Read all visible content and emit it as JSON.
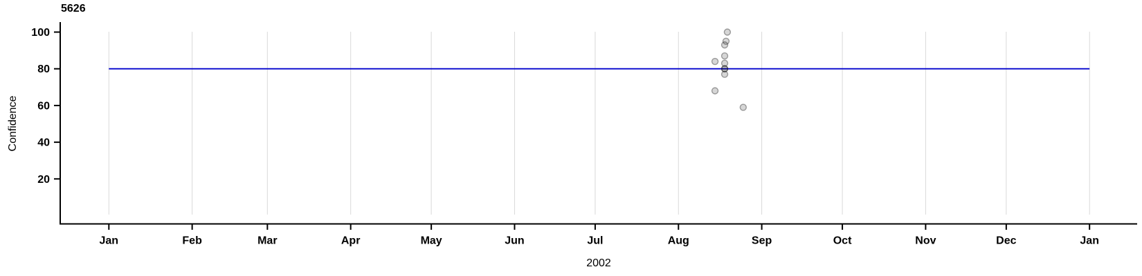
{
  "chart_data": {
    "type": "scatter",
    "title": "5626",
    "ylabel": "Confidence",
    "xlabel": "2002",
    "x_axis": {
      "unit": "months of year 2002 (date axis, Jan 2002 through Jan 2003)",
      "tick_labels": [
        "Jan",
        "Feb",
        "Mar",
        "Apr",
        "May",
        "Jun",
        "Jul",
        "Aug",
        "Sep",
        "Oct",
        "Nov",
        "Dec",
        "Jan"
      ],
      "tick_days": [
        0,
        31,
        59,
        90,
        120,
        151,
        181,
        212,
        243,
        273,
        304,
        334,
        365
      ],
      "range_days": [
        0,
        365
      ],
      "grid": true
    },
    "y_axis": {
      "tick_labels": [
        "20",
        "40",
        "60",
        "80",
        "100"
      ],
      "tick_values": [
        20,
        40,
        60,
        80,
        100
      ],
      "range": [
        -5,
        105
      ],
      "grid": false
    },
    "reference_line": {
      "y": 80,
      "color": "#0000cd",
      "span_days": [
        0,
        365
      ],
      "width": 1.8
    },
    "points": [
      {
        "date_approx": "2002-08-19",
        "day": 230.2,
        "confidence": 100
      },
      {
        "date_approx": "2002-08-18",
        "day": 229.7,
        "confidence": 95
      },
      {
        "date_approx": "2002-08-18",
        "day": 229.2,
        "confidence": 93
      },
      {
        "date_approx": "2002-08-18",
        "day": 229.2,
        "confidence": 87
      },
      {
        "date_approx": "2002-08-18",
        "day": 229.2,
        "confidence": 83
      },
      {
        "date_approx": "2002-08-15",
        "day": 225.6,
        "confidence": 84
      },
      {
        "date_approx": "2002-08-18",
        "day": 229.2,
        "confidence": 80
      },
      {
        "date_approx": "2002-08-18",
        "day": 229.2,
        "confidence": 80
      },
      {
        "date_approx": "2002-08-18",
        "day": 229.2,
        "confidence": 77
      },
      {
        "date_approx": "2002-08-15",
        "day": 225.6,
        "confidence": 68
      },
      {
        "date_approx": "2002-08-25",
        "day": 236.1,
        "confidence": 59
      }
    ],
    "point_style": {
      "radius": 4.5,
      "fill": "rgba(0,0,0,0.16)",
      "stroke": "rgba(0,0,0,0.35)",
      "stroke_width": 1.4
    },
    "colors": {
      "grid": "#d9d9d9",
      "axis": "#000000",
      "text": "#000000",
      "reference": "#0000cd"
    },
    "legend": "none"
  }
}
